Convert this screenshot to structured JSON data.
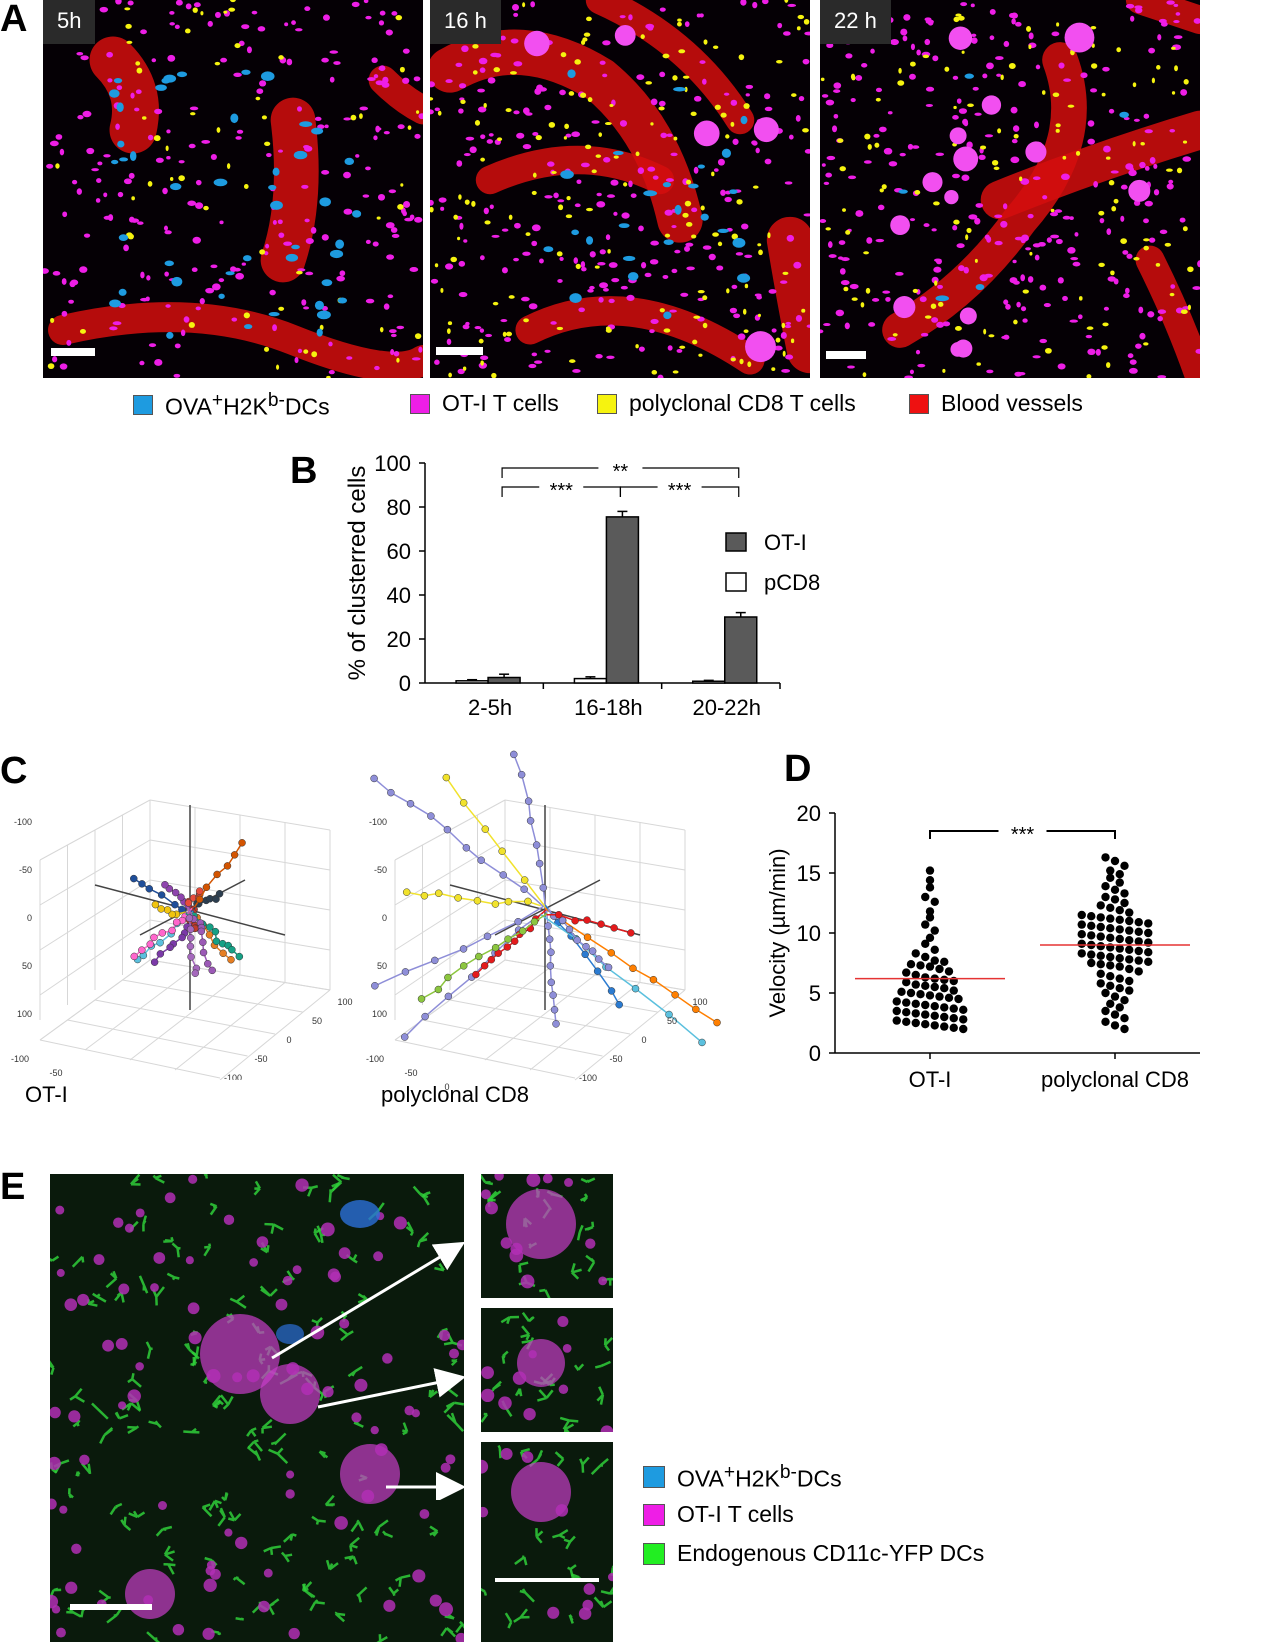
{
  "panels": {
    "A": {
      "letter": "A",
      "images": [
        {
          "time_label": "5h"
        },
        {
          "time_label": "16  h"
        },
        {
          "time_label": "22  h"
        }
      ],
      "legend": {
        "dc": {
          "pre": "OVA",
          "sup1": "+",
          "mid": "H2K",
          "sup2": "b-",
          "post": "DCs",
          "color": "#1e9be0"
        },
        "ot1": {
          "label": "OT-I T cells",
          "color": "#ee1ee6"
        },
        "pcd8": {
          "label": "polyclonal CD8 T cells",
          "color": "#f6f30f"
        },
        "vessels": {
          "label": "Blood vessels",
          "color": "#ee1111"
        }
      }
    },
    "B": {
      "letter": "B"
    },
    "C": {
      "letter": "C",
      "plots": [
        {
          "label": "OT-I",
          "ticks_z": [
            "-100",
            "-50",
            "0",
            "50",
            "100"
          ],
          "ticks_x": [
            "-100",
            "-50",
            "0",
            "50",
            "100"
          ],
          "ticks_y": [
            "100",
            "50",
            "0",
            "-50",
            "-100"
          ]
        },
        {
          "label": "polyclonal CD8",
          "ticks_z": [
            "-100",
            "-50",
            "0",
            "50",
            "100"
          ],
          "ticks_x": [
            "-100",
            "-50",
            "0",
            "50",
            "100"
          ],
          "ticks_y": [
            "100",
            "50",
            "0",
            "-50",
            "-100"
          ]
        }
      ]
    },
    "D": {
      "letter": "D"
    },
    "E": {
      "letter": "E",
      "legend": {
        "dc": {
          "pre": "OVA",
          "sup1": "+",
          "mid": "H2K",
          "sup2": "b-",
          "post": "DCs",
          "color": "#1e9be0"
        },
        "ot1": {
          "label": "OT-I T cells",
          "color": "#ee1ee6"
        },
        "endog": {
          "label": "Endogenous CD11c-YFP DCs",
          "color": "#22ee22"
        }
      }
    }
  },
  "chart_data": [
    {
      "id": "B",
      "type": "bar",
      "categories": [
        "2-5h",
        "16-18h",
        "20-22h"
      ],
      "series": [
        {
          "name": "OT-I",
          "values": [
            2.5,
            75.5,
            30
          ],
          "errors": [
            1.5,
            2.5,
            2
          ],
          "color": "#5a5a5a"
        },
        {
          "name": "pCD8",
          "values": [
            1,
            2,
            0.8
          ],
          "errors": [
            0.5,
            0.8,
            0.4
          ],
          "color": "#ffffff"
        }
      ],
      "xlabel": "",
      "ylabel": "% of clusterred cells",
      "ylim": [
        0,
        100
      ],
      "yticks": [
        "0",
        "20",
        "40",
        "60",
        "80",
        "100"
      ],
      "legend_position": "right",
      "significance": [
        {
          "from": "2-5h",
          "to": "16-18h",
          "label": "***"
        },
        {
          "from": "16-18h",
          "to": "20-22h",
          "label": "***"
        },
        {
          "from": "2-5h",
          "to": "20-22h",
          "label": "**"
        }
      ]
    },
    {
      "id": "D",
      "type": "scatter",
      "categories": [
        "OT-I",
        "polyclonal CD8"
      ],
      "ylabel": "Velocity (µm/min)",
      "ylim": [
        0,
        20
      ],
      "yticks": [
        "0",
        "5",
        "10",
        "15",
        "20"
      ],
      "means": [
        6.2,
        9.0
      ],
      "significance": {
        "label": "***"
      },
      "series": [
        {
          "name": "OT-I",
          "values": [
            15.2,
            14.4,
            13.8,
            13.0,
            12.6,
            11.8,
            11.3,
            10.7,
            10.2,
            9.6,
            9.1,
            8.6,
            8.3,
            8.0,
            7.7,
            7.6,
            7.4,
            7.3,
            7.2,
            7.0,
            6.8,
            6.7,
            6.5,
            6.3,
            6.2,
            6.1,
            6.0,
            5.9,
            5.7,
            5.6,
            5.5,
            5.4,
            5.2,
            5.1,
            5.0,
            4.9,
            4.8,
            4.7,
            4.6,
            4.5,
            4.3,
            4.2,
            4.1,
            4.0,
            3.9,
            3.8,
            3.7,
            3.6,
            3.5,
            3.4,
            3.3,
            3.2,
            3.1,
            3.0,
            2.9,
            2.8,
            2.7,
            2.6,
            2.5,
            2.4,
            2.3,
            2.2,
            2.1,
            2.0
          ]
        },
        {
          "name": "polyclonal CD8",
          "values": [
            16.3,
            16.0,
            15.6,
            15.2,
            14.9,
            14.6,
            14.2,
            13.9,
            13.6,
            13.3,
            13.0,
            12.8,
            12.5,
            12.3,
            12.1,
            11.9,
            11.7,
            11.5,
            11.4,
            11.3,
            11.2,
            11.1,
            11.0,
            10.9,
            10.8,
            10.7,
            10.6,
            10.5,
            10.4,
            10.3,
            10.2,
            10.1,
            10.0,
            9.9,
            9.8,
            9.7,
            9.6,
            9.5,
            9.4,
            9.3,
            9.2,
            9.1,
            9.0,
            8.9,
            8.8,
            8.7,
            8.6,
            8.5,
            8.4,
            8.3,
            8.2,
            8.1,
            8.0,
            7.9,
            7.8,
            7.7,
            7.6,
            7.5,
            7.4,
            7.3,
            7.2,
            7.0,
            6.8,
            6.6,
            6.4,
            6.2,
            6.0,
            5.8,
            5.6,
            5.4,
            5.2,
            5.0,
            4.7,
            4.4,
            4.1,
            3.8,
            3.5,
            3.2,
            2.9,
            2.6,
            2.3,
            2.0
          ]
        }
      ]
    }
  ]
}
